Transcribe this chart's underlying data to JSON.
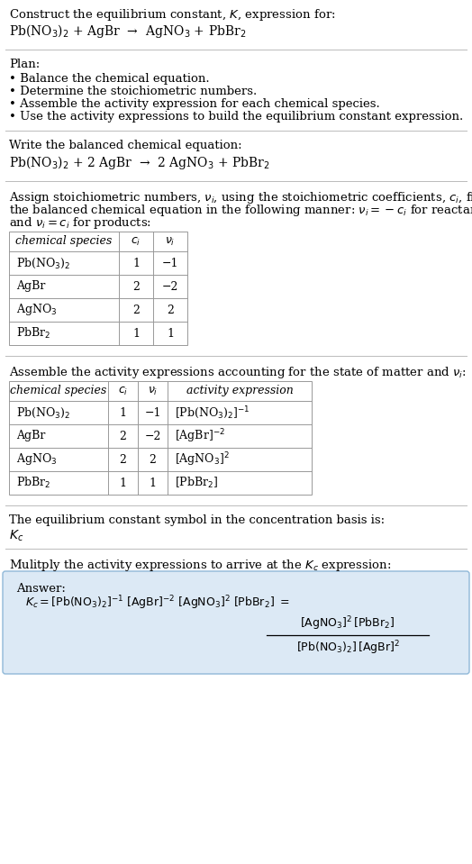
{
  "bg_color": "#ffffff",
  "title_line1": "Construct the equilibrium constant, $K$, expression for:",
  "title_line2": "Pb(NO$_3$)$_2$ + AgBr  →  AgNO$_3$ + PbBr$_2$",
  "plan_header": "Plan:",
  "plan_bullets": [
    "• Balance the chemical equation.",
    "• Determine the stoichiometric numbers.",
    "• Assemble the activity expression for each chemical species.",
    "• Use the activity expressions to build the equilibrium constant expression."
  ],
  "balanced_header": "Write the balanced chemical equation:",
  "balanced_eq": "Pb(NO$_3$)$_2$ + 2 AgBr  →  2 AgNO$_3$ + PbBr$_2$",
  "stoich_intro1": "Assign stoichiometric numbers, $\\nu_i$, using the stoichiometric coefficients, $c_i$, from",
  "stoich_intro2": "the balanced chemical equation in the following manner: $\\nu_i = -c_i$ for reactants",
  "stoich_intro3": "and $\\nu_i = c_i$ for products:",
  "table1_headers": [
    "chemical species",
    "$c_i$",
    "$\\nu_i$"
  ],
  "table1_rows": [
    [
      "Pb(NO$_3$)$_2$",
      "1",
      "−1"
    ],
    [
      "AgBr",
      "2",
      "−2"
    ],
    [
      "AgNO$_3$",
      "2",
      "2"
    ],
    [
      "PbBr$_2$",
      "1",
      "1"
    ]
  ],
  "activity_intro": "Assemble the activity expressions accounting for the state of matter and $\\nu_i$:",
  "table2_headers": [
    "chemical species",
    "$c_i$",
    "$\\nu_i$",
    "activity expression"
  ],
  "table2_rows": [
    [
      "Pb(NO$_3$)$_2$",
      "1",
      "−1",
      "[Pb(NO$_3$)$_2$]$^{-1}$"
    ],
    [
      "AgBr",
      "2",
      "−2",
      "[AgBr]$^{-2}$"
    ],
    [
      "AgNO$_3$",
      "2",
      "2",
      "[AgNO$_3$]$^2$"
    ],
    [
      "PbBr$_2$",
      "1",
      "1",
      "[PbBr$_2$]"
    ]
  ],
  "kc_line1": "The equilibrium constant symbol in the concentration basis is:",
  "kc_symbol": "$K_c$",
  "multiply_line": "Mulitply the activity expressions to arrive at the $K_c$ expression:",
  "answer_box_color": "#dce9f5",
  "answer_label": "Answer:",
  "font_size": 9.5,
  "table_font_size": 9.0
}
